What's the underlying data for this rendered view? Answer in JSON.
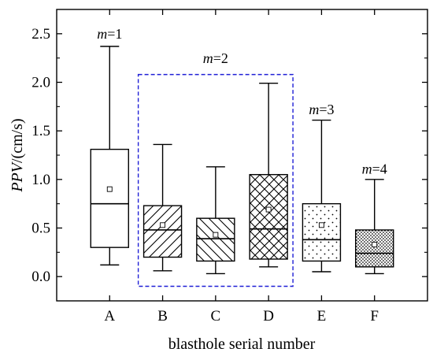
{
  "chart_data": {
    "type": "box",
    "xlabel": "blasthole serial number",
    "ylabel": "PPV/(cm/s)",
    "ylabel_italic": "PPV",
    "ylabel_rest": "/(cm/s)",
    "ylim": [
      -0.25,
      2.75
    ],
    "yticks": [
      0.0,
      0.5,
      1.0,
      1.5,
      2.0,
      2.5
    ],
    "ytick_labels": [
      "0.0",
      "0.5",
      "1.0",
      "1.5",
      "2.0",
      "2.5"
    ],
    "categories": [
      "A",
      "B",
      "C",
      "D",
      "E",
      "F"
    ],
    "boxes": [
      {
        "category": "A",
        "whisker_low": 0.12,
        "q1": 0.3,
        "median": 0.75,
        "q3": 1.31,
        "whisker_high": 2.37,
        "mean": 0.9,
        "pattern": "none"
      },
      {
        "category": "B",
        "whisker_low": 0.06,
        "q1": 0.2,
        "median": 0.48,
        "q3": 0.73,
        "whisker_high": 1.36,
        "mean": 0.53,
        "pattern": "diagonal-up"
      },
      {
        "category": "C",
        "whisker_low": 0.03,
        "q1": 0.16,
        "median": 0.39,
        "q3": 0.6,
        "whisker_high": 1.13,
        "mean": 0.43,
        "pattern": "diagonal-down"
      },
      {
        "category": "D",
        "whisker_low": 0.1,
        "q1": 0.18,
        "median": 0.49,
        "q3": 1.05,
        "whisker_high": 1.99,
        "mean": 0.69,
        "pattern": "crosshatch"
      },
      {
        "category": "E",
        "whisker_low": 0.05,
        "q1": 0.16,
        "median": 0.38,
        "q3": 0.75,
        "whisker_high": 1.61,
        "mean": 0.53,
        "pattern": "dots"
      },
      {
        "category": "F",
        "whisker_low": 0.03,
        "q1": 0.1,
        "median": 0.24,
        "q3": 0.48,
        "whisker_high": 1.0,
        "mean": 0.33,
        "pattern": "dense-dots"
      }
    ],
    "annotations": [
      {
        "var": "m",
        "value": "=1",
        "category": "A",
        "y": 2.45
      },
      {
        "var": "m",
        "value": "=2",
        "category": "C",
        "y": 2.2
      },
      {
        "var": "m",
        "value": "=3",
        "category": "E",
        "y": 1.67
      },
      {
        "var": "m",
        "value": "=4",
        "category": "F",
        "y": 1.06
      }
    ],
    "group_box": {
      "from_category": "B",
      "to_category": "D",
      "y_top": 2.08,
      "y_bottom": -0.1,
      "color": "#1f1fd6"
    },
    "colors": {
      "box_fill": "#ffffff",
      "stroke": "#000000",
      "pattern": "#000000",
      "group_border": "#1f1fd6"
    }
  }
}
